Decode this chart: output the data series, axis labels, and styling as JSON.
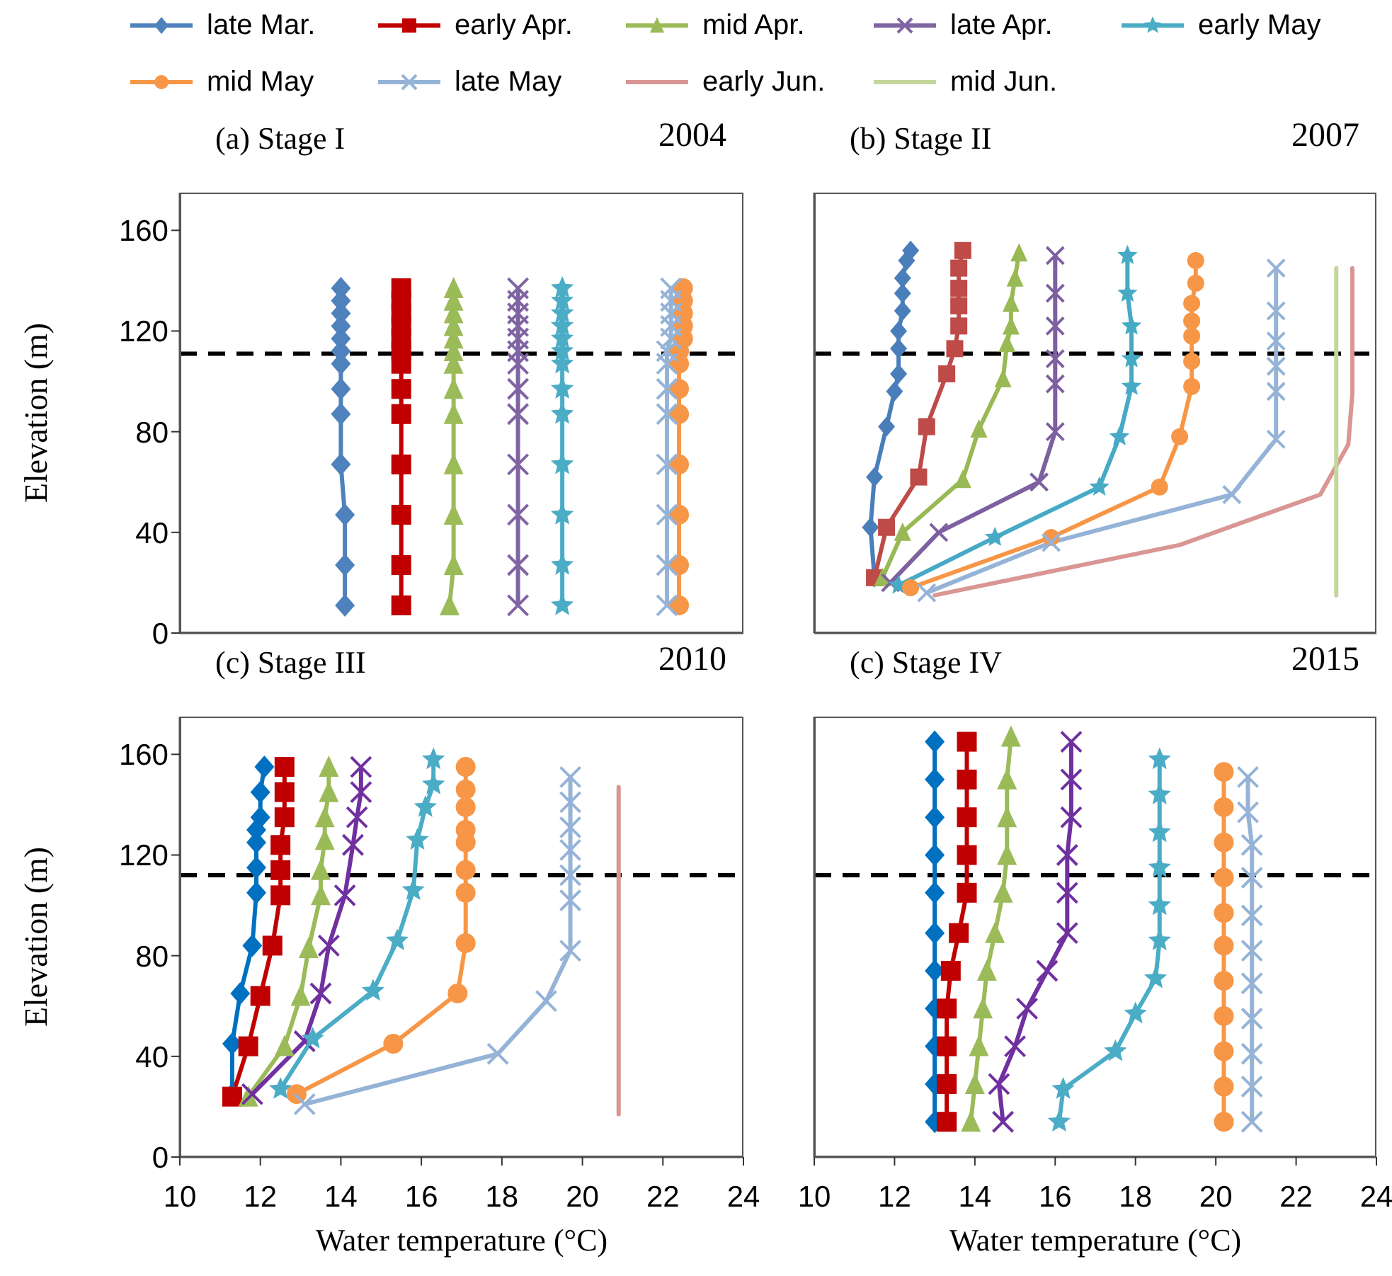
{
  "chart_data": [
    {
      "type": "line",
      "title": "(a) Stage I",
      "annotations": [
        "2004"
      ],
      "ylabel": "Elevation (m)",
      "xlim": [
        10,
        24
      ],
      "xticks": [
        10,
        12,
        14,
        16,
        18,
        20,
        22,
        24
      ],
      "ylim": [
        0,
        175
      ],
      "yticks": [
        0,
        40,
        80,
        120,
        160
      ],
      "tick_labels": "y",
      "legend": "top",
      "grid": false,
      "ref_lines": [
        {
          "axis": "y",
          "value": 111,
          "color": "#000000",
          "line_style": "dashed"
        }
      ],
      "series": [
        {
          "name": "late Mar.",
          "color": "#4f81bd",
          "marker": "diamond",
          "x": [
            14.1,
            14.1,
            14.1,
            14.0,
            14.0,
            14.0,
            14.0,
            14.0,
            14.0,
            14.0,
            14.0,
            14.0,
            14.0
          ],
          "values": [
            11,
            27,
            47,
            67,
            87,
            97,
            107,
            112,
            117,
            122,
            127,
            132,
            137
          ]
        },
        {
          "name": "early Apr.",
          "color": "#c00000",
          "marker": "square",
          "x": [
            15.5,
            15.5,
            15.5,
            15.5,
            15.5,
            15.5,
            15.5,
            15.5,
            15.5,
            15.5,
            15.5,
            15.5,
            15.5
          ],
          "values": [
            11,
            27,
            47,
            67,
            87,
            97,
            107,
            112,
            117,
            122,
            127,
            132,
            137
          ]
        },
        {
          "name": "mid Apr.",
          "color": "#9bbb59",
          "marker": "triangle",
          "x": [
            16.7,
            16.8,
            16.8,
            16.8,
            16.8,
            16.8,
            16.8,
            16.8,
            16.8,
            16.8,
            16.8,
            16.8,
            16.8
          ],
          "values": [
            11,
            27,
            47,
            67,
            87,
            97,
            107,
            112,
            117,
            122,
            127,
            132,
            137
          ]
        },
        {
          "name": "late Apr.",
          "color": "#8064a2",
          "marker": "cross",
          "x": [
            18.4,
            18.4,
            18.4,
            18.4,
            18.4,
            18.4,
            18.4,
            18.4,
            18.4,
            18.4,
            18.4,
            18.4,
            18.4
          ],
          "values": [
            11,
            27,
            47,
            67,
            87,
            97,
            107,
            112,
            117,
            122,
            127,
            132,
            137
          ]
        },
        {
          "name": "early May",
          "color": "#4bacc6",
          "marker": "star",
          "x": [
            19.5,
            19.5,
            19.5,
            19.5,
            19.5,
            19.5,
            19.5,
            19.5,
            19.5,
            19.5,
            19.5,
            19.5,
            19.5
          ],
          "values": [
            11,
            27,
            47,
            67,
            87,
            97,
            107,
            112,
            117,
            122,
            127,
            132,
            137
          ]
        },
        {
          "name": "mid May",
          "color": "#f79646",
          "marker": "circle",
          "x": [
            22.4,
            22.4,
            22.4,
            22.4,
            22.4,
            22.4,
            22.4,
            22.4,
            22.5,
            22.5,
            22.5,
            22.5,
            22.5
          ],
          "values": [
            11,
            27,
            47,
            67,
            87,
            97,
            107,
            112,
            117,
            122,
            127,
            132,
            137
          ]
        },
        {
          "name": "late May",
          "color": "#95b3d7",
          "marker": "cross",
          "x": [
            22.1,
            22.1,
            22.1,
            22.1,
            22.1,
            22.1,
            22.1,
            22.1,
            22.2,
            22.2,
            22.2,
            22.2,
            22.2
          ],
          "values": [
            11,
            27,
            47,
            67,
            87,
            97,
            107,
            112,
            117,
            122,
            127,
            132,
            137
          ]
        },
        {
          "name": "early Jun.",
          "color": "#d99694",
          "marker": "none"
        },
        {
          "name": "mid Jun.",
          "color": "#c3d69b",
          "marker": "none"
        }
      ]
    },
    {
      "type": "line",
      "title": "(b) Stage II",
      "annotations": [
        "2007"
      ],
      "xlim": [
        10,
        24
      ],
      "xticks": [
        10,
        12,
        14,
        16,
        18,
        20,
        22,
        24
      ],
      "ylim": [
        0,
        175
      ],
      "yticks": [
        0,
        40,
        80,
        120,
        160
      ],
      "tick_labels": false,
      "grid": false,
      "ref_lines": [
        {
          "axis": "y",
          "value": 111,
          "color": "#000000",
          "line_style": "dashed"
        }
      ],
      "series": [
        {
          "color": "#4a7ebb",
          "marker": "diamond",
          "x": [
            11.5,
            11.4,
            11.5,
            11.8,
            12.0,
            12.1,
            12.1,
            12.1,
            12.2,
            12.2,
            12.2,
            12.3,
            12.4
          ],
          "values": [
            22,
            42,
            62,
            82,
            96,
            103,
            113,
            120,
            128,
            135,
            141,
            148,
            152
          ]
        },
        {
          "color": "#be4b48",
          "marker": "square",
          "x": [
            11.5,
            11.8,
            12.6,
            12.8,
            13.3,
            13.5,
            13.6,
            13.6,
            13.6,
            13.6,
            13.7
          ],
          "values": [
            22,
            42,
            62,
            82,
            103,
            113,
            122,
            130,
            137,
            145,
            152
          ]
        },
        {
          "color": "#98b954",
          "marker": "triangle",
          "x": [
            11.7,
            12.2,
            13.7,
            14.1,
            14.7,
            14.8,
            14.9,
            14.9,
            15.0,
            15.1
          ],
          "values": [
            22,
            40,
            61,
            81,
            101,
            115,
            122,
            131,
            141,
            151
          ]
        },
        {
          "color": "#7d60a0",
          "marker": "cross",
          "x": [
            11.9,
            13.1,
            15.6,
            16.0,
            16.0,
            16.0,
            16.0,
            16.0,
            16.0
          ],
          "values": [
            20,
            40,
            60,
            80,
            99,
            109,
            122,
            135,
            150
          ]
        },
        {
          "color": "#46aac5",
          "marker": "star",
          "x": [
            12.1,
            14.5,
            17.1,
            17.6,
            17.9,
            17.9,
            17.9,
            17.8,
            17.8
          ],
          "values": [
            19,
            38,
            58,
            78,
            98,
            109,
            122,
            135,
            150
          ]
        },
        {
          "color": "#f79646",
          "marker": "circle",
          "x": [
            12.4,
            15.9,
            18.6,
            19.1,
            19.4,
            19.4,
            19.4,
            19.4,
            19.4,
            19.5,
            19.5
          ],
          "values": [
            18,
            38,
            58,
            78,
            98,
            108,
            118,
            124,
            131,
            139,
            148
          ]
        },
        {
          "color": "#95b3d7",
          "marker": "cross",
          "x": [
            12.8,
            15.9,
            20.4,
            21.5,
            21.5,
            21.5,
            21.5,
            21.5,
            21.5
          ],
          "values": [
            16,
            36,
            55,
            77,
            96,
            106,
            116,
            128,
            145
          ]
        },
        {
          "color": "#d99694",
          "marker": "none",
          "x": [
            13.0,
            19.1,
            22.6,
            23.3,
            23.4,
            23.4,
            23.4,
            23.4,
            23.4
          ],
          "values": [
            15,
            35,
            55,
            75,
            95,
            105,
            115,
            126,
            145
          ]
        },
        {
          "color": "#c3d69b",
          "marker": "none",
          "x": [
            23.0,
            23.0,
            23.0,
            23.0,
            23.0,
            23.0,
            23.0,
            23.0,
            23.0,
            23.0,
            23.0
          ],
          "values": [
            15,
            36,
            56,
            76,
            96,
            105,
            115,
            120,
            128,
            135,
            145
          ]
        }
      ]
    },
    {
      "type": "line",
      "title": "(c) Stage III",
      "annotations": [
        "2010"
      ],
      "xlabel": "Water temperature (°C)",
      "ylabel": "Elevation (m)",
      "xlim": [
        10,
        24
      ],
      "xticks": [
        10,
        12,
        14,
        16,
        18,
        20,
        22,
        24
      ],
      "ylim": [
        0,
        175
      ],
      "yticks": [
        0,
        40,
        80,
        120,
        160
      ],
      "grid": false,
      "ref_lines": [
        {
          "axis": "y",
          "value": 112,
          "color": "#000000",
          "line_style": "dashed"
        }
      ],
      "series": [
        {
          "color": "#0070c0",
          "marker": "diamond",
          "x": [
            11.3,
            11.3,
            11.5,
            11.8,
            11.9,
            11.9,
            11.9,
            11.9,
            12.0,
            12.0,
            12.1
          ],
          "values": [
            25,
            45,
            65,
            84,
            105,
            115,
            125,
            130,
            135,
            145,
            155
          ]
        },
        {
          "color": "#c00000",
          "marker": "square",
          "x": [
            11.3,
            11.7,
            12.0,
            12.3,
            12.5,
            12.5,
            12.5,
            12.6,
            12.6,
            12.6
          ],
          "values": [
            24,
            44,
            64,
            84,
            104,
            114,
            124,
            135,
            145,
            155
          ]
        },
        {
          "color": "#9bbb59",
          "marker": "triangle",
          "x": [
            11.7,
            12.6,
            13.0,
            13.2,
            13.5,
            13.5,
            13.6,
            13.6,
            13.7,
            13.7
          ],
          "values": [
            24,
            44,
            64,
            83,
            104,
            114,
            126,
            135,
            145,
            155
          ]
        },
        {
          "color": "#7030a0",
          "marker": "cross",
          "x": [
            11.8,
            13.1,
            13.5,
            13.7,
            14.1,
            14.3,
            14.4,
            14.5,
            14.5
          ],
          "values": [
            25,
            46,
            65,
            84,
            104,
            124,
            135,
            145,
            155
          ]
        },
        {
          "color": "#4bacc6",
          "marker": "star",
          "x": [
            12.5,
            13.3,
            14.8,
            15.4,
            15.8,
            15.9,
            16.1,
            16.3,
            16.3
          ],
          "values": [
            27,
            47,
            66,
            86,
            106,
            126,
            139,
            148,
            158
          ]
        },
        {
          "color": "#f79646",
          "marker": "circle",
          "x": [
            12.9,
            15.3,
            16.9,
            17.1,
            17.1,
            17.1,
            17.1,
            17.1,
            17.1,
            17.1,
            17.1
          ],
          "values": [
            25,
            45,
            65,
            85,
            105,
            114,
            125,
            130,
            139,
            146,
            155
          ]
        },
        {
          "color": "#95b3d7",
          "marker": "cross",
          "x": [
            13.1,
            17.9,
            19.1,
            19.7,
            19.7,
            19.7,
            19.7,
            19.7,
            19.7,
            19.7
          ],
          "values": [
            21,
            41,
            62,
            82,
            102,
            112,
            122,
            131,
            141,
            151
          ]
        },
        {
          "color": "#d99694",
          "marker": "none",
          "x": [
            20.9,
            20.9,
            20.9,
            20.9,
            20.9,
            20.9,
            20.9,
            20.9,
            20.9,
            20.9,
            20.9,
            20.9,
            20.9,
            20.9
          ],
          "values": [
            17,
            37,
            57,
            77,
            97,
            107,
            113,
            117,
            123,
            128,
            133,
            138,
            143,
            147
          ]
        }
      ]
    },
    {
      "type": "line",
      "title": "(c) Stage IV",
      "annotations": [
        "2015"
      ],
      "xlabel": "Water temperature (°C)",
      "xlim": [
        10,
        24
      ],
      "xticks": [
        10,
        12,
        14,
        16,
        18,
        20,
        22,
        24
      ],
      "ylim": [
        0,
        175
      ],
      "yticks": [
        0,
        40,
        80,
        120,
        160
      ],
      "tick_labels": "x",
      "grid": false,
      "ref_lines": [
        {
          "axis": "y",
          "value": 112,
          "color": "#000000",
          "line_style": "dashed"
        }
      ],
      "series": [
        {
          "color": "#0070c0",
          "marker": "diamond",
          "x": [
            13.0,
            13.0,
            13.0,
            13.0,
            13.0,
            13.0,
            13.0,
            13.0,
            13.0,
            13.0,
            13.0
          ],
          "values": [
            14,
            29,
            44,
            59,
            74,
            89,
            105,
            120,
            135,
            150,
            165
          ]
        },
        {
          "color": "#c00000",
          "marker": "square",
          "x": [
            13.3,
            13.3,
            13.3,
            13.3,
            13.4,
            13.6,
            13.8,
            13.8,
            13.8,
            13.8,
            13.8
          ],
          "values": [
            14,
            29,
            44,
            59,
            74,
            89,
            105,
            120,
            135,
            150,
            165
          ]
        },
        {
          "color": "#9bbb59",
          "marker": "triangle",
          "x": [
            13.9,
            14.0,
            14.1,
            14.2,
            14.3,
            14.5,
            14.7,
            14.8,
            14.8,
            14.8,
            14.9
          ],
          "values": [
            14,
            29,
            44,
            59,
            74,
            89,
            105,
            120,
            135,
            150,
            167
          ]
        },
        {
          "color": "#7030a0",
          "marker": "cross",
          "x": [
            14.7,
            14.6,
            15.0,
            15.3,
            15.8,
            16.3,
            16.3,
            16.3,
            16.4,
            16.4,
            16.4
          ],
          "values": [
            14,
            29,
            44,
            59,
            74,
            89,
            105,
            120,
            135,
            150,
            165
          ]
        },
        {
          "color": "#4bacc6",
          "marker": "star",
          "x": [
            16.1,
            16.2,
            17.5,
            18.0,
            18.5,
            18.6,
            18.6,
            18.6,
            18.6,
            18.6,
            18.6
          ],
          "values": [
            14,
            27,
            42,
            57,
            71,
            86,
            100,
            115,
            129,
            144,
            158
          ]
        },
        {
          "color": "#f79646",
          "marker": "circle",
          "x": [
            20.2,
            20.2,
            20.2,
            20.2,
            20.2,
            20.2,
            20.2,
            20.2,
            20.2,
            20.2,
            20.2
          ],
          "values": [
            14,
            28,
            42,
            56,
            70,
            84,
            97,
            111,
            125,
            139,
            153
          ]
        },
        {
          "color": "#95b3d7",
          "marker": "cross",
          "x": [
            20.9,
            20.9,
            20.9,
            20.9,
            20.9,
            20.9,
            20.9,
            20.9,
            20.9,
            20.8,
            20.8
          ],
          "values": [
            14,
            28,
            41,
            55,
            69,
            82,
            96,
            111,
            124,
            137,
            151
          ]
        }
      ]
    }
  ]
}
